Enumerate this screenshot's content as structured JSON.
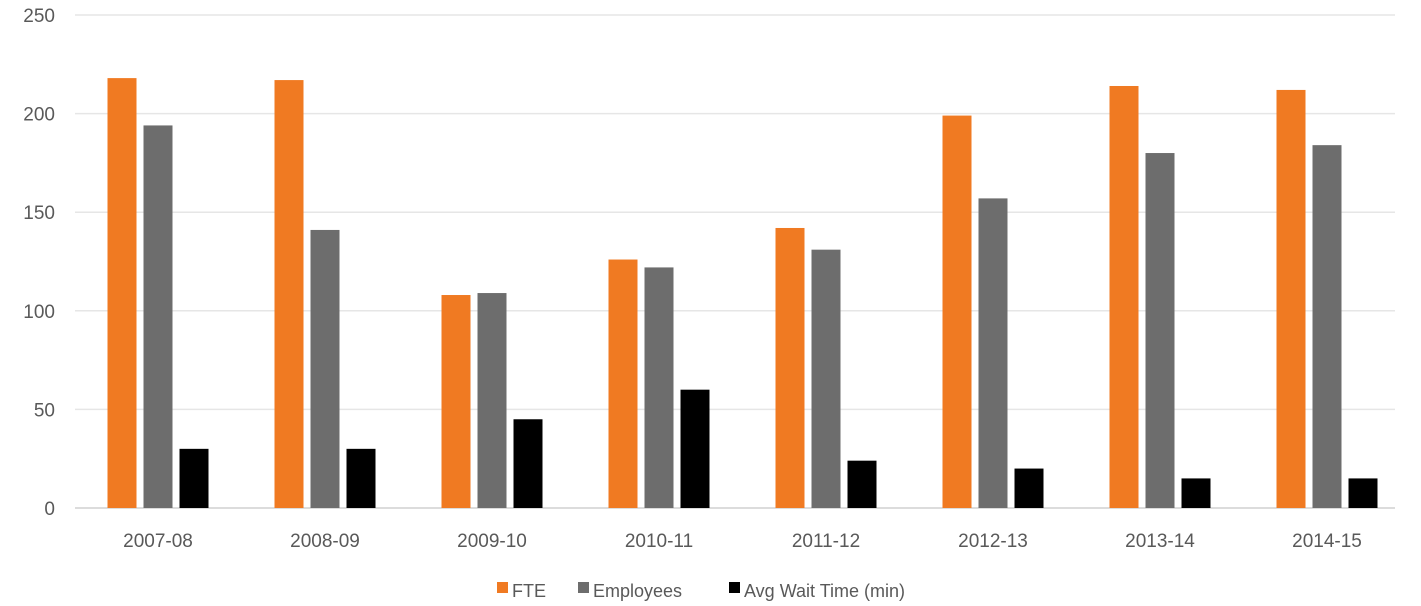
{
  "chart_data": {
    "type": "bar",
    "title": "",
    "xlabel": "",
    "ylabel": "",
    "categories": [
      "2007-08",
      "2008-09",
      "2009-10",
      "2010-11",
      "2011-12",
      "2012-13",
      "2013-14",
      "2014-15"
    ],
    "series": [
      {
        "name": "FTE",
        "color": "#f07a22",
        "values": [
          218,
          217,
          108,
          126,
          142,
          199,
          214,
          212
        ]
      },
      {
        "name": "Employees",
        "color": "#6d6d6d",
        "values": [
          194,
          141,
          109,
          122,
          131,
          157,
          180,
          184
        ]
      },
      {
        "name": "Avg Wait Time (min)",
        "color": "#000000",
        "values": [
          30,
          30,
          45,
          60,
          24,
          20,
          15,
          15
        ]
      }
    ],
    "ylim": [
      0,
      250
    ],
    "yticks": [
      0,
      50,
      100,
      150,
      200,
      250
    ],
    "grid": true,
    "legend_position": "bottom-center"
  }
}
